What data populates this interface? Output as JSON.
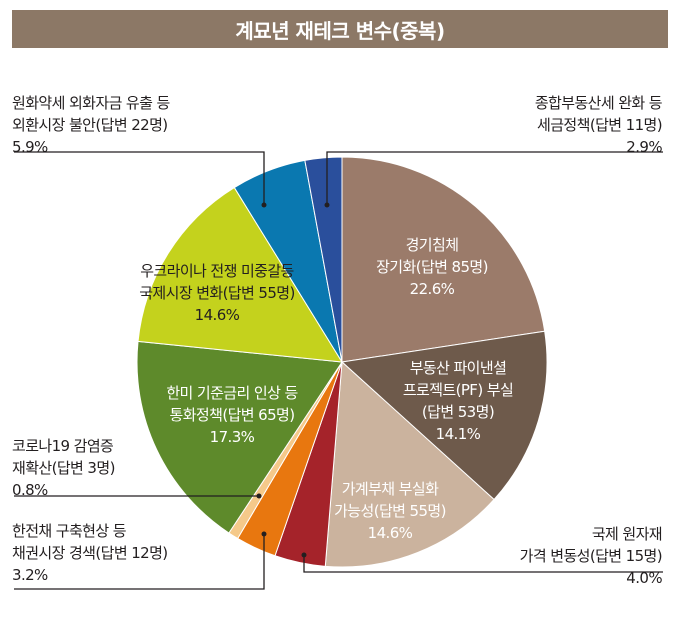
{
  "title": "계묘년 재테크 변수(중복)",
  "chart_data": {
    "type": "pie",
    "title": "계묘년 재테크 변수(중복)",
    "slices": [
      {
        "lines": [
          "경기침체",
          "장기화(답변 85명)"
        ],
        "pct_label": "22.6%",
        "value": 22.6,
        "color": "#9b7b6a",
        "label_color": "#ffffff",
        "placement": "inside"
      },
      {
        "lines": [
          "부동산 파이낸셜",
          "프로젝트(PF) 부실",
          "(답변 53명)"
        ],
        "pct_label": "14.1%",
        "value": 14.1,
        "color": "#6e5a4b",
        "label_color": "#ffffff",
        "placement": "inside"
      },
      {
        "lines": [
          "가계부채 부실화",
          "가능성(답변 55명)"
        ],
        "pct_label": "14.6%",
        "value": 14.6,
        "color": "#cbb39e",
        "label_color": "#ffffff",
        "placement": "inside"
      },
      {
        "lines": [
          "국제 원자재",
          "가격 변동성(답변 15명)"
        ],
        "pct_label": "4.0%",
        "value": 4.0,
        "color": "#a5232a",
        "label_color": "#231f20",
        "placement": "outside"
      },
      {
        "lines": [
          "한전채 구축현상 등",
          "채권시장 경색(답변 12명)"
        ],
        "pct_label": "3.2%",
        "value": 3.2,
        "color": "#e8770f",
        "label_color": "#231f20",
        "placement": "outside"
      },
      {
        "lines": [
          "코로나19 감염증",
          "재확산(답변 3명)"
        ],
        "pct_label": "0.8%",
        "value": 0.8,
        "color": "#f5c98a",
        "label_color": "#231f20",
        "placement": "outside"
      },
      {
        "lines": [
          "한미 기준금리 인상 등",
          "통화정책(답변 65명)"
        ],
        "pct_label": "17.3%",
        "value": 17.3,
        "color": "#5e8a2b",
        "label_color": "#ffffff",
        "placement": "inside"
      },
      {
        "lines": [
          "우크라이나 전쟁 미중갈등",
          "국제시장 변화(답변 55명)"
        ],
        "pct_label": "14.6%",
        "value": 14.6,
        "color": "#c4d21d",
        "label_color": "#231f20",
        "placement": "inside"
      },
      {
        "lines": [
          "원화약세 외화자금 유출 등",
          "외환시장 불안(답변 22명)"
        ],
        "pct_label": "5.9%",
        "value": 5.9,
        "color": "#0a78b0",
        "label_color": "#231f20",
        "placement": "outside"
      },
      {
        "lines": [
          "종합부동산세 완화 등",
          "세금정책(답변 11명)"
        ],
        "pct_label": "2.9%",
        "value": 2.9,
        "color": "#2a4f9c",
        "label_color": "#231f20",
        "placement": "outside"
      }
    ]
  }
}
